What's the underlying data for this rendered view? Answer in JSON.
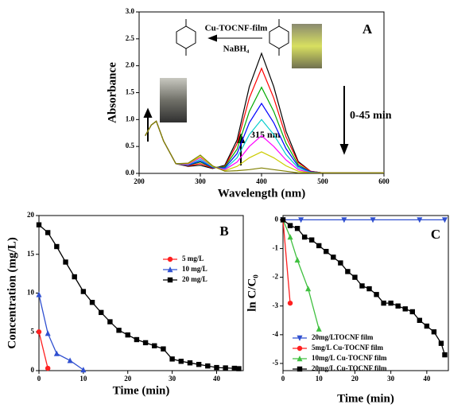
{
  "chart_data": [
    {
      "type": "line",
      "label": "A",
      "x_label": "Wavelength (nm)",
      "y_label": "Absorbance",
      "annotations": [
        "Cu-TOCNF-film",
        "NaBH₄",
        "0-45 min",
        "315 nm"
      ],
      "xlim": [
        200,
        600
      ],
      "xticks": [
        200,
        300,
        400,
        500,
        600
      ],
      "ylim": [
        0,
        3
      ],
      "yticks": [
        {
          "value": 0,
          "label": "0.0"
        },
        {
          "value": 0.5,
          "label": "0.5"
        },
        {
          "value": 1,
          "label": "1.0"
        },
        {
          "value": 1.5,
          "label": "1.5"
        },
        {
          "value": 2,
          "label": "2.0"
        },
        {
          "value": 2.5,
          "label": "2.5"
        },
        {
          "value": 3,
          "label": "3.0"
        }
      ],
      "x": [
        210,
        220,
        228,
        240,
        260,
        280,
        300,
        320,
        340,
        360,
        380,
        400,
        420,
        440,
        460,
        480,
        500,
        550,
        600
      ],
      "series": [
        {
          "color": "#000000",
          "values": [
            0.7,
            0.9,
            0.97,
            0.6,
            0.18,
            0.13,
            0.15,
            0.09,
            0.15,
            0.62,
            1.61,
            2.23,
            1.61,
            0.78,
            0.22,
            0.04,
            0.01,
            0.01,
            0.01
          ]
        },
        {
          "color": "#ff0000",
          "values": [
            0.7,
            0.9,
            0.97,
            0.6,
            0.18,
            0.14,
            0.18,
            0.1,
            0.13,
            0.55,
            1.4,
            1.95,
            1.4,
            0.68,
            0.2,
            0.04,
            0.01,
            0.01,
            0.01
          ]
        },
        {
          "color": "#00aa00",
          "values": [
            0.7,
            0.9,
            0.97,
            0.6,
            0.18,
            0.15,
            0.21,
            0.11,
            0.12,
            0.45,
            1.15,
            1.6,
            1.15,
            0.56,
            0.16,
            0.03,
            0.01,
            0.01,
            0.01
          ]
        },
        {
          "color": "#0000ff",
          "values": [
            0.7,
            0.9,
            0.97,
            0.6,
            0.18,
            0.15,
            0.23,
            0.11,
            0.1,
            0.37,
            0.94,
            1.3,
            0.94,
            0.46,
            0.13,
            0.03,
            0.01,
            0.01,
            0.01
          ]
        },
        {
          "color": "#00cccc",
          "values": [
            0.7,
            0.9,
            0.97,
            0.6,
            0.18,
            0.16,
            0.26,
            0.12,
            0.08,
            0.29,
            0.72,
            1.0,
            0.72,
            0.35,
            0.1,
            0.02,
            0.01,
            0.01,
            0.01
          ]
        },
        {
          "color": "#ff00ff",
          "values": [
            0.7,
            0.9,
            0.97,
            0.6,
            0.18,
            0.17,
            0.29,
            0.13,
            0.07,
            0.21,
            0.5,
            0.7,
            0.5,
            0.25,
            0.07,
            0.01,
            0.01,
            0.01,
            0.01
          ]
        },
        {
          "color": "#cccc00",
          "values": [
            0.7,
            0.9,
            0.97,
            0.6,
            0.18,
            0.18,
            0.31,
            0.13,
            0.05,
            0.13,
            0.29,
            0.4,
            0.29,
            0.14,
            0.04,
            0.01,
            0.01,
            0.01,
            0.01
          ]
        },
        {
          "color": "#808000",
          "values": [
            0.7,
            0.9,
            0.97,
            0.6,
            0.18,
            0.19,
            0.34,
            0.14,
            0.04,
            0.05,
            0.07,
            0.1,
            0.07,
            0.04,
            0.01,
            0.01,
            0.01,
            0.01,
            0.01
          ]
        }
      ]
    },
    {
      "type": "line",
      "label": "B",
      "x_label": "Time (min)",
      "y_label": "Concentration (mg/L)",
      "legend": "center",
      "xlim": [
        0,
        46
      ],
      "xticks": [
        0,
        10,
        20,
        30,
        40
      ],
      "ylim": [
        0,
        20
      ],
      "yticks": [
        0,
        5,
        10,
        15,
        20
      ],
      "series": [
        {
          "name": "5 mg/L",
          "color": "#ff2020",
          "marker": "circle",
          "x": [
            0,
            2
          ],
          "values": [
            5,
            0.3
          ]
        },
        {
          "name": "10 mg/L",
          "color": "#3050d0",
          "marker": "triangle",
          "x": [
            0,
            2,
            4,
            7,
            10
          ],
          "values": [
            9.8,
            4.8,
            2.2,
            1.3,
            0.1
          ]
        },
        {
          "name": "20 mg/L",
          "color": "#000000",
          "marker": "square",
          "x": [
            0,
            2,
            4,
            6,
            8,
            10,
            12,
            14,
            16,
            18,
            20,
            22,
            24,
            26,
            28,
            30,
            32,
            34,
            36,
            38,
            40,
            42,
            44,
            45
          ],
          "values": [
            18.8,
            17.8,
            16,
            14,
            12.1,
            10.2,
            8.8,
            7.5,
            6.3,
            5.2,
            4.6,
            4.0,
            3.6,
            3.2,
            2.8,
            1.5,
            1.2,
            1.0,
            0.8,
            0.6,
            0.4,
            0.35,
            0.3,
            0.25
          ]
        }
      ]
    },
    {
      "type": "line",
      "label": "C",
      "x_label": "Time (min)",
      "y_label": "ln C/C₀",
      "legend": "lower left",
      "xlim": [
        0,
        46
      ],
      "xticks": [
        0,
        10,
        20,
        30,
        40
      ],
      "ylim": [
        -5.25,
        0.15
      ],
      "yticks": [
        0,
        -1,
        -2,
        -3,
        -4,
        -5
      ],
      "series": [
        {
          "name": "20mg/LTOCNF film",
          "color": "#3050d0",
          "marker": "triangle-down",
          "x": [
            0,
            5,
            17,
            25,
            38,
            45
          ],
          "values": [
            0,
            0,
            0,
            0,
            0,
            0
          ]
        },
        {
          "name": "5mg/L Cu-TOCNF film",
          "color": "#ff2020",
          "marker": "circle",
          "x": [
            0,
            2
          ],
          "values": [
            0,
            -2.9
          ]
        },
        {
          "name": "10mg/L Cu-TOCNF film",
          "color": "#40c040",
          "marker": "triangle",
          "x": [
            0,
            2,
            4,
            7,
            10
          ],
          "values": [
            0,
            -0.6,
            -1.4,
            -2.4,
            -3.8
          ]
        },
        {
          "name": "20mg/L Cu-TOCNF film",
          "color": "#000000",
          "marker": "square",
          "x": [
            0,
            2,
            4,
            6,
            8,
            10,
            12,
            14,
            16,
            18,
            20,
            22,
            24,
            26,
            28,
            30,
            32,
            34,
            36,
            38,
            40,
            42,
            44,
            45
          ],
          "values": [
            0,
            -0.2,
            -0.3,
            -0.6,
            -0.7,
            -0.9,
            -1.1,
            -1.3,
            -1.5,
            -1.8,
            -2.0,
            -2.3,
            -2.4,
            -2.6,
            -2.9,
            -2.9,
            -3.0,
            -3.1,
            -3.2,
            -3.5,
            -3.7,
            -3.9,
            -4.3,
            -4.7
          ]
        }
      ]
    }
  ]
}
